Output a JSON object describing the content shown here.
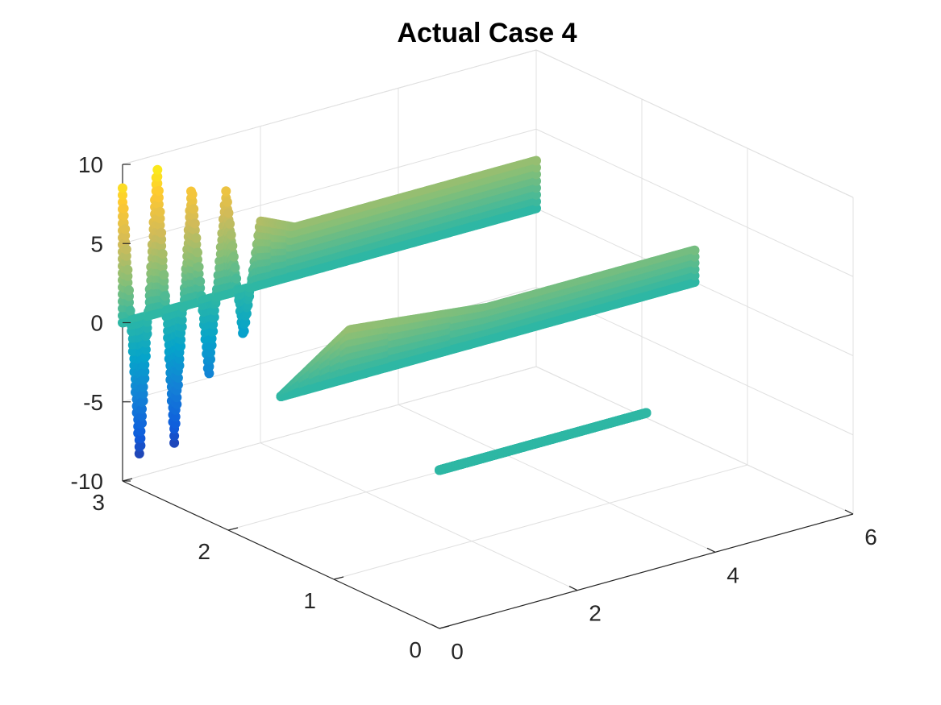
{
  "chart_data": {
    "type": "scatter",
    "view": "3d",
    "title": "Actual Case 4",
    "xlabel": "",
    "ylabel": "",
    "zlabel": "",
    "xlim": [
      0,
      6
    ],
    "ylim": [
      0,
      3
    ],
    "zlim": [
      -10,
      10
    ],
    "x_ticks": [
      "0",
      "2",
      "4",
      "6"
    ],
    "y_ticks": [
      "0",
      "1",
      "2",
      "3"
    ],
    "z_ticks": [
      "-10",
      "-5",
      "0",
      "5",
      "10"
    ],
    "grid": true,
    "colormap": "parula",
    "colormap_stops": [
      "#352a87",
      "#0f5cdd",
      "#1481d6",
      "#06a4ca",
      "#2eb7a4",
      "#87bf77",
      "#d1bb59",
      "#fec832",
      "#f9fb0e"
    ],
    "series": [
      {
        "x_range": [
          0,
          6
        ],
        "y_value": 3,
        "z_at_x": [
          [
            0,
            8.5
          ],
          [
            0.25,
            -9.0
          ],
          [
            0.5,
            9.5
          ],
          [
            0.75,
            -8.5
          ],
          [
            1.0,
            7.5
          ],
          [
            1.25,
            -5.0
          ],
          [
            1.5,
            6.5
          ],
          [
            1.75,
            -3.0
          ],
          [
            2.0,
            4.0
          ],
          [
            2.5,
            3.0
          ],
          [
            3.0,
            3.0
          ],
          [
            3.5,
            3.0
          ],
          [
            4.0,
            3.0
          ],
          [
            4.5,
            3.0
          ],
          [
            5.0,
            3.0
          ],
          [
            5.5,
            3.0
          ],
          [
            6.0,
            3.0
          ]
        ]
      },
      {
        "x_range": [
          0,
          6
        ],
        "y_value": 1.5,
        "z_at_x": [
          [
            0,
            0.0
          ],
          [
            1.0,
            3.0
          ],
          [
            2.0,
            2.5
          ],
          [
            3.0,
            2.0
          ],
          [
            4.0,
            2.0
          ],
          [
            5.0,
            2.0
          ],
          [
            6.0,
            2.0
          ]
        ]
      },
      {
        "x_range": [
          0,
          3
        ],
        "y_value": 0,
        "z_at_x": [
          [
            0,
            0.0
          ],
          [
            1.5,
            0.0
          ],
          [
            3.0,
            0.0
          ]
        ]
      }
    ]
  }
}
